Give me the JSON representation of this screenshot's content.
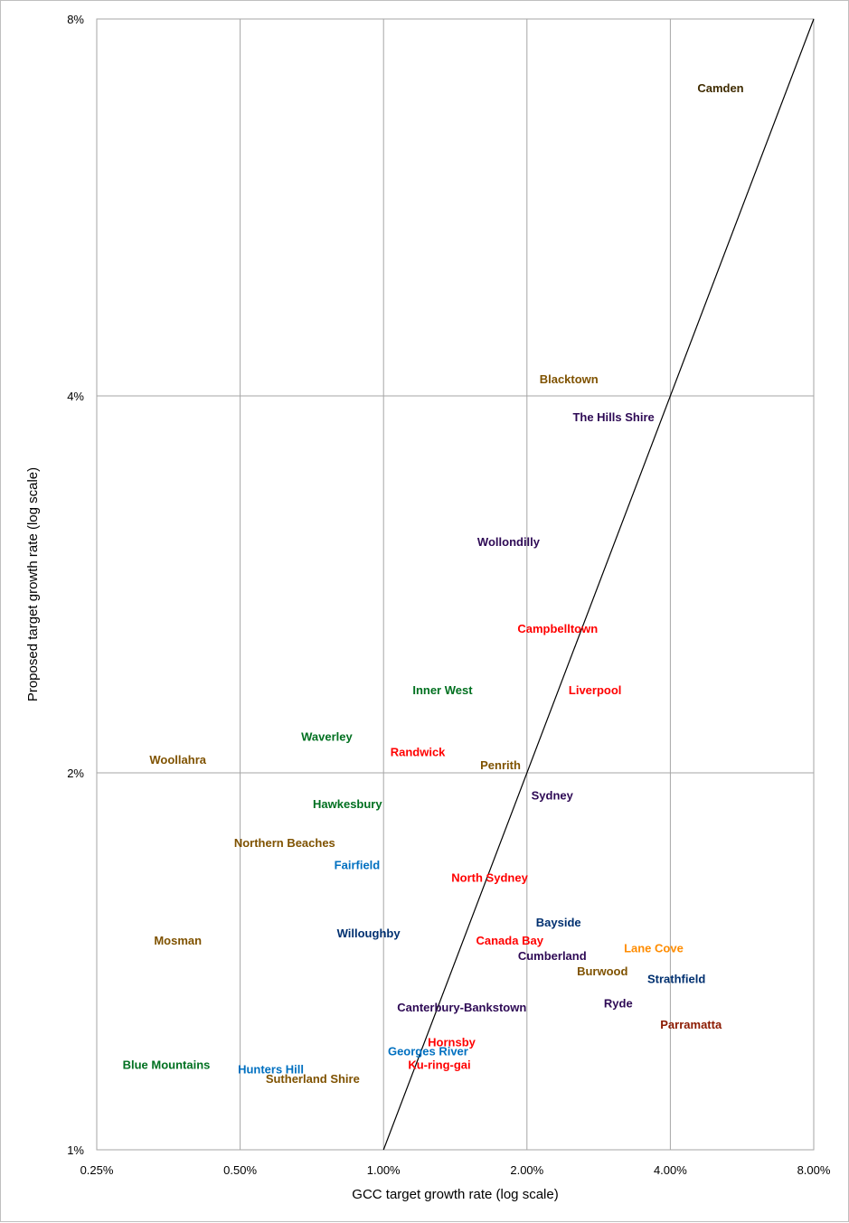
{
  "chart_data": {
    "type": "scatter",
    "xlabel": "GCC target growth rate (log scale)",
    "ylabel": "Proposed target growth rate (log scale)",
    "x_scale": "log",
    "y_scale": "log",
    "xlim": [
      0.0025,
      0.08
    ],
    "ylim": [
      0.01,
      0.08
    ],
    "x_ticks": [
      0.0025,
      0.005,
      0.01,
      0.02,
      0.04,
      0.08
    ],
    "x_tick_labels": [
      "0.25%",
      "0.50%",
      "1.00%",
      "2.00%",
      "4.00%",
      "8.00%"
    ],
    "y_ticks": [
      0.01,
      0.02,
      0.04,
      0.08
    ],
    "y_tick_labels": [
      "1%",
      "2%",
      "4%",
      "8%"
    ],
    "grid": true,
    "reference_line": {
      "from": [
        0.01,
        0.01
      ],
      "to": [
        0.08,
        0.08
      ]
    },
    "points": [
      {
        "label": "Camden",
        "x": 0.051,
        "y": 0.0705,
        "color": "#3f2b00"
      },
      {
        "label": "Blacktown",
        "x": 0.0245,
        "y": 0.0413,
        "color": "#7f5200"
      },
      {
        "label": "The Hills Shire",
        "x": 0.0304,
        "y": 0.0385,
        "color": "#2e0a55"
      },
      {
        "label": "Wollondilly",
        "x": 0.0183,
        "y": 0.0306,
        "color": "#2e0a55"
      },
      {
        "label": "Campbelltown",
        "x": 0.0232,
        "y": 0.0261,
        "color": "#ff0000"
      },
      {
        "label": "Inner West",
        "x": 0.0133,
        "y": 0.0233,
        "color": "#007020"
      },
      {
        "label": "Liverpool",
        "x": 0.0278,
        "y": 0.0233,
        "color": "#ff0000"
      },
      {
        "label": "Waverley",
        "x": 0.0076,
        "y": 0.0214,
        "color": "#007020"
      },
      {
        "label": "Woollahra",
        "x": 0.0037,
        "y": 0.0205,
        "color": "#7f5200"
      },
      {
        "label": "Randwick",
        "x": 0.0118,
        "y": 0.0208,
        "color": "#ff0000"
      },
      {
        "label": "Penrith",
        "x": 0.0176,
        "y": 0.0203,
        "color": "#7f5200"
      },
      {
        "label": "Hawkesbury",
        "x": 0.0084,
        "y": 0.0189,
        "color": "#007020"
      },
      {
        "label": "Sydney",
        "x": 0.0226,
        "y": 0.0192,
        "color": "#2e0a55"
      },
      {
        "label": "Northern Beaches",
        "x": 0.0062,
        "y": 0.0176,
        "color": "#7f5200"
      },
      {
        "label": "Fairfield",
        "x": 0.0088,
        "y": 0.0169,
        "color": "#0070c0"
      },
      {
        "label": "North Sydney",
        "x": 0.0167,
        "y": 0.0165,
        "color": "#ff0000"
      },
      {
        "label": "Bayside",
        "x": 0.0233,
        "y": 0.0152,
        "color": "#003070"
      },
      {
        "label": "Willoughby",
        "x": 0.0093,
        "y": 0.0149,
        "color": "#003070"
      },
      {
        "label": "Mosman",
        "x": 0.0037,
        "y": 0.0147,
        "color": "#7f5200"
      },
      {
        "label": "Canada Bay",
        "x": 0.0184,
        "y": 0.0147,
        "color": "#ff0000"
      },
      {
        "label": "Lane Cove",
        "x": 0.0369,
        "y": 0.0145,
        "color": "#ff8c00"
      },
      {
        "label": "Cumberland",
        "x": 0.0226,
        "y": 0.0143,
        "color": "#2e0a55"
      },
      {
        "label": "Burwood",
        "x": 0.0288,
        "y": 0.0139,
        "color": "#7f5200"
      },
      {
        "label": "Strathfield",
        "x": 0.0412,
        "y": 0.0137,
        "color": "#003070"
      },
      {
        "label": "Ryde",
        "x": 0.0311,
        "y": 0.0131,
        "color": "#2e0a55"
      },
      {
        "label": "Canterbury-Bankstown",
        "x": 0.0146,
        "y": 0.013,
        "color": "#2e0a55"
      },
      {
        "label": "Parramatta",
        "x": 0.0442,
        "y": 0.0126,
        "color": "#8b1a00"
      },
      {
        "label": "Hornsby",
        "x": 0.0139,
        "y": 0.0122,
        "color": "#ff0000"
      },
      {
        "label": "Georges River",
        "x": 0.0124,
        "y": 0.012,
        "color": "#0070c0"
      },
      {
        "label": "Ku-ring-gai",
        "x": 0.0131,
        "y": 0.0117,
        "color": "#ff0000"
      },
      {
        "label": "Blue Mountains",
        "x": 0.0035,
        "y": 0.0117,
        "color": "#007020"
      },
      {
        "label": "Hunters Hill",
        "x": 0.0058,
        "y": 0.0116,
        "color": "#0070c0"
      },
      {
        "label": "Sutherland Shire",
        "x": 0.0071,
        "y": 0.0114,
        "color": "#7f5200"
      }
    ]
  }
}
